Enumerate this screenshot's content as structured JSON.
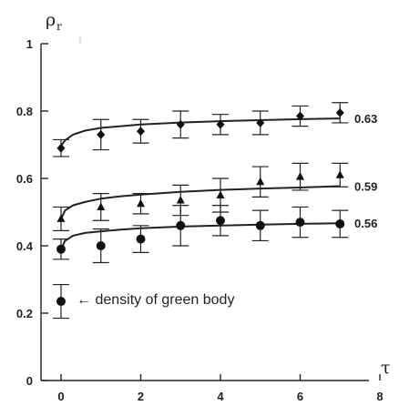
{
  "chart_data": {
    "type": "scatter",
    "ylabel": "ρ",
    "ylabel_subscript": "r",
    "xlabel": "τ",
    "xlim": [
      0,
      8
    ],
    "ylim": [
      0,
      1
    ],
    "x_ticks": [
      "0",
      "2",
      "4",
      "6",
      "8"
    ],
    "y_ticks": [
      "0",
      "0.2",
      "0.4",
      "0.6",
      "0.8",
      "1"
    ],
    "grid": false,
    "series": [
      {
        "name": "0.63",
        "marker": "diamond",
        "points": [
          {
            "x": 0,
            "y": 0.69,
            "err": 0.025
          },
          {
            "x": 1,
            "y": 0.73,
            "err": 0.045
          },
          {
            "x": 2,
            "y": 0.74,
            "err": 0.035
          },
          {
            "x": 3,
            "y": 0.76,
            "err": 0.04
          },
          {
            "x": 4,
            "y": 0.76,
            "err": 0.03
          },
          {
            "x": 5,
            "y": 0.765,
            "err": 0.035
          },
          {
            "x": 6,
            "y": 0.785,
            "err": 0.03
          },
          {
            "x": 7,
            "y": 0.795,
            "err": 0.03
          }
        ],
        "fit": [
          [
            0.02,
            0.7
          ],
          [
            0.1,
            0.713
          ],
          [
            0.3,
            0.73
          ],
          [
            0.6,
            0.742
          ],
          [
            1,
            0.75
          ],
          [
            1.5,
            0.755
          ],
          [
            2,
            0.76
          ],
          [
            3,
            0.766
          ],
          [
            4,
            0.77
          ],
          [
            5,
            0.773
          ],
          [
            6,
            0.776
          ],
          [
            7,
            0.778
          ]
        ]
      },
      {
        "name": "0.59",
        "marker": "triangle",
        "points": [
          {
            "x": 0,
            "y": 0.48,
            "err": 0.035
          },
          {
            "x": 1,
            "y": 0.515,
            "err": 0.04
          },
          {
            "x": 2,
            "y": 0.525,
            "err": 0.03
          },
          {
            "x": 3,
            "y": 0.535,
            "err": 0.045
          },
          {
            "x": 4,
            "y": 0.55,
            "err": 0.05
          },
          {
            "x": 5,
            "y": 0.59,
            "err": 0.045
          },
          {
            "x": 6,
            "y": 0.605,
            "err": 0.04
          },
          {
            "x": 7,
            "y": 0.61,
            "err": 0.035
          }
        ],
        "fit": [
          [
            0.02,
            0.485
          ],
          [
            0.1,
            0.505
          ],
          [
            0.3,
            0.52
          ],
          [
            0.6,
            0.53
          ],
          [
            1,
            0.54
          ],
          [
            1.5,
            0.547
          ],
          [
            2,
            0.552
          ],
          [
            3,
            0.56
          ],
          [
            4,
            0.566
          ],
          [
            5,
            0.57
          ],
          [
            6,
            0.573
          ],
          [
            7,
            0.577
          ]
        ]
      },
      {
        "name": "0.56",
        "marker": "circle",
        "points": [
          {
            "x": 0,
            "y": 0.39,
            "err": 0.03
          },
          {
            "x": 1,
            "y": 0.4,
            "err": 0.05
          },
          {
            "x": 2,
            "y": 0.42,
            "err": 0.04
          },
          {
            "x": 3,
            "y": 0.46,
            "err": 0.06
          },
          {
            "x": 4,
            "y": 0.475,
            "err": 0.045
          },
          {
            "x": 5,
            "y": 0.46,
            "err": 0.045
          },
          {
            "x": 6,
            "y": 0.47,
            "err": 0.045
          },
          {
            "x": 7,
            "y": 0.465,
            "err": 0.04
          }
        ],
        "fit": [
          [
            0.02,
            0.395
          ],
          [
            0.1,
            0.415
          ],
          [
            0.3,
            0.43
          ],
          [
            0.6,
            0.438
          ],
          [
            1,
            0.443
          ],
          [
            1.5,
            0.448
          ],
          [
            2,
            0.452
          ],
          [
            3,
            0.457
          ],
          [
            4,
            0.46
          ],
          [
            5,
            0.463
          ],
          [
            6,
            0.465
          ],
          [
            7,
            0.467
          ]
        ]
      }
    ],
    "annotation": {
      "text": "← density of green body",
      "point": {
        "x": 0,
        "y": 0.235,
        "err": 0.05
      }
    }
  }
}
